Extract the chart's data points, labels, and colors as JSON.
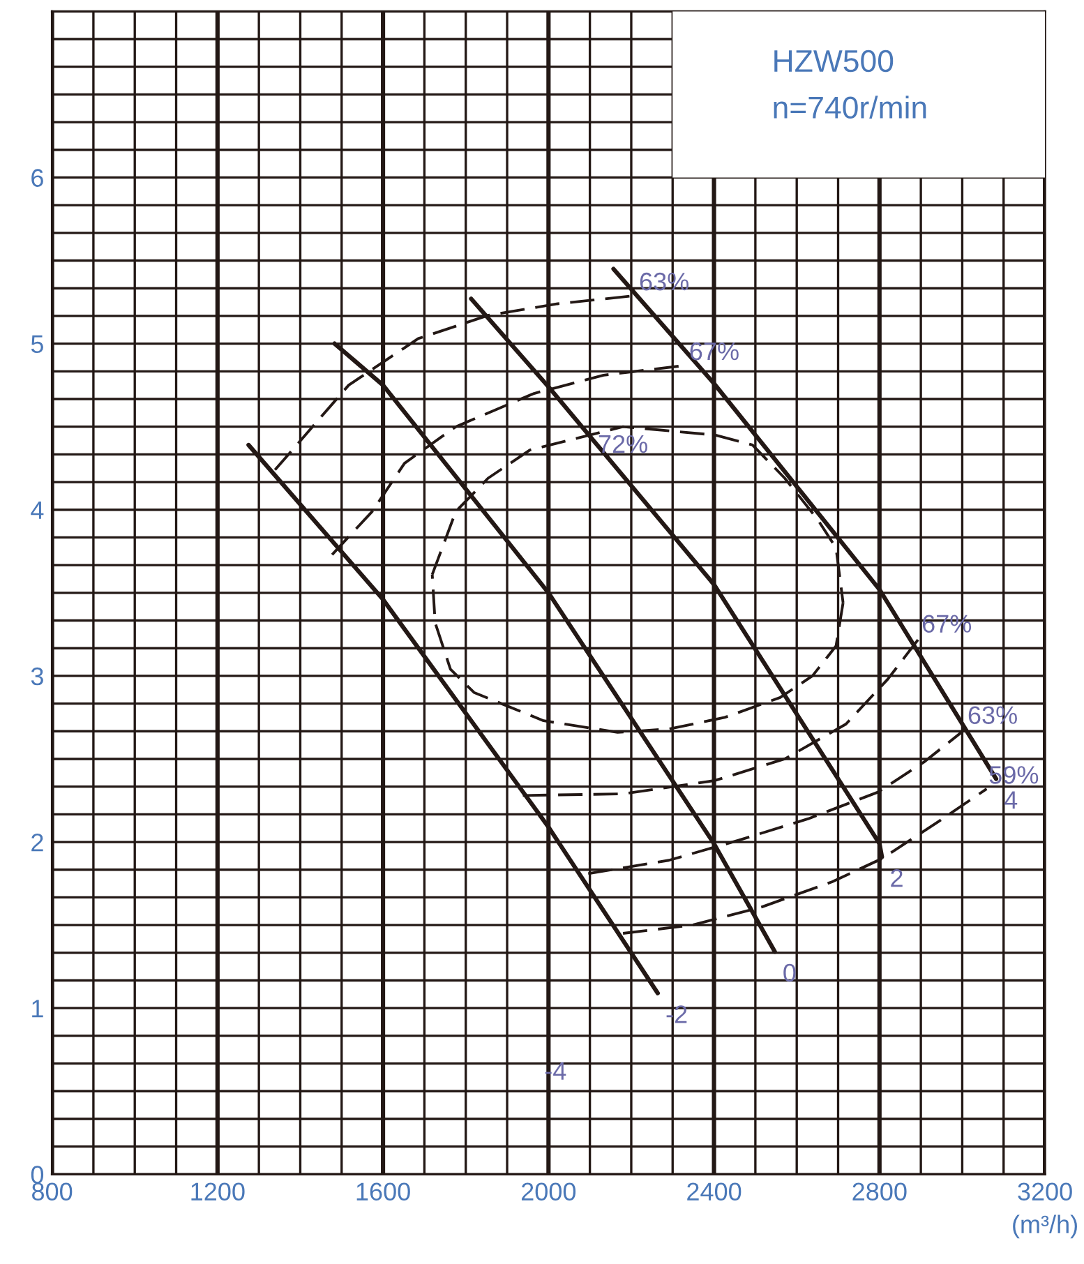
{
  "chart_data": {
    "type": "line",
    "title": "HZW500",
    "subtitle": "n=740r/min",
    "xlabel": "(m³/h)",
    "xlim": [
      800,
      3200
    ],
    "xticks": [
      800,
      1200,
      1600,
      2000,
      2400,
      2800,
      3200
    ],
    "ylim": [
      0,
      7
    ],
    "yticks": [
      0,
      1,
      2,
      3,
      4,
      5,
      6
    ],
    "grid": true,
    "marker": "none",
    "series": [
      {
        "name": "-2",
        "color": "#231815",
        "line_style": "solid",
        "x": [
          1275,
          1600,
          2000,
          2264
        ],
        "values": [
          4.39,
          3.46,
          2.09,
          1.09
        ]
      },
      {
        "name": "0",
        "color": "#231815",
        "line_style": "solid",
        "x": [
          1483,
          1600,
          2000,
          2400,
          2547
        ],
        "values": [
          5.0,
          4.75,
          3.5,
          1.99,
          1.34
        ]
      },
      {
        "name": "2",
        "color": "#231815",
        "line_style": "solid",
        "x": [
          1813,
          2000,
          2400,
          2800,
          2806
        ],
        "values": [
          5.27,
          4.74,
          3.55,
          1.99,
          1.91
        ]
      },
      {
        "name": "4",
        "color": "#231815",
        "line_style": "solid",
        "x": [
          2157,
          2400,
          2800,
          3082
        ],
        "values": [
          5.45,
          4.76,
          3.52,
          2.38
        ]
      },
      {
        "name": "63%",
        "color": "#231815",
        "line_style": "dashed",
        "x": [
          1339,
          1517,
          1685,
          1854,
          2022,
          2214,
          null,
          2096,
          2291,
          2459,
          2628,
          2796,
          2907,
          3008
        ],
        "values": [
          4.24,
          4.75,
          5.03,
          5.17,
          5.24,
          5.29,
          null,
          1.81,
          1.89,
          2.01,
          2.14,
          2.3,
          2.48,
          2.68
        ]
      },
      {
        "name": "67%",
        "color": "#231815",
        "line_style": "dashed",
        "x": [
          1477,
          1574,
          1652,
          1776,
          1965,
          2133,
          2335,
          null,
          1938,
          2180,
          2402,
          2571,
          2719,
          2820,
          2897
        ],
        "values": [
          3.73,
          3.99,
          4.28,
          4.5,
          4.7,
          4.81,
          4.87,
          null,
          2.28,
          2.29,
          2.37,
          2.5,
          2.71,
          2.98,
          3.23
        ]
      },
      {
        "name": "59%",
        "color": "#231815",
        "line_style": "dashed",
        "x": [
          2180,
          2348,
          2517,
          2685,
          2806,
          2941,
          3059
        ],
        "values": [
          1.45,
          1.5,
          1.61,
          1.76,
          1.9,
          2.12,
          2.32
        ]
      },
      {
        "name": "72%",
        "color": "#231815",
        "line_style": "dashed",
        "x": [
          1719,
          1776,
          1854,
          1955,
          2180,
          2402,
          2493,
          2571,
          2651,
          2695,
          2712,
          null,
          2712,
          2695,
          2638,
          2560,
          2426,
          2291,
          2167,
          1988,
          1820,
          1763,
          1726,
          1719
        ],
        "values": [
          3.61,
          3.99,
          4.19,
          4.36,
          4.5,
          4.45,
          4.39,
          4.19,
          3.94,
          3.77,
          3.44,
          null,
          3.44,
          3.18,
          3.0,
          2.87,
          2.75,
          2.68,
          2.66,
          2.73,
          2.9,
          3.04,
          3.32,
          3.61
        ]
      }
    ],
    "annotations": [
      "-4"
    ]
  }
}
